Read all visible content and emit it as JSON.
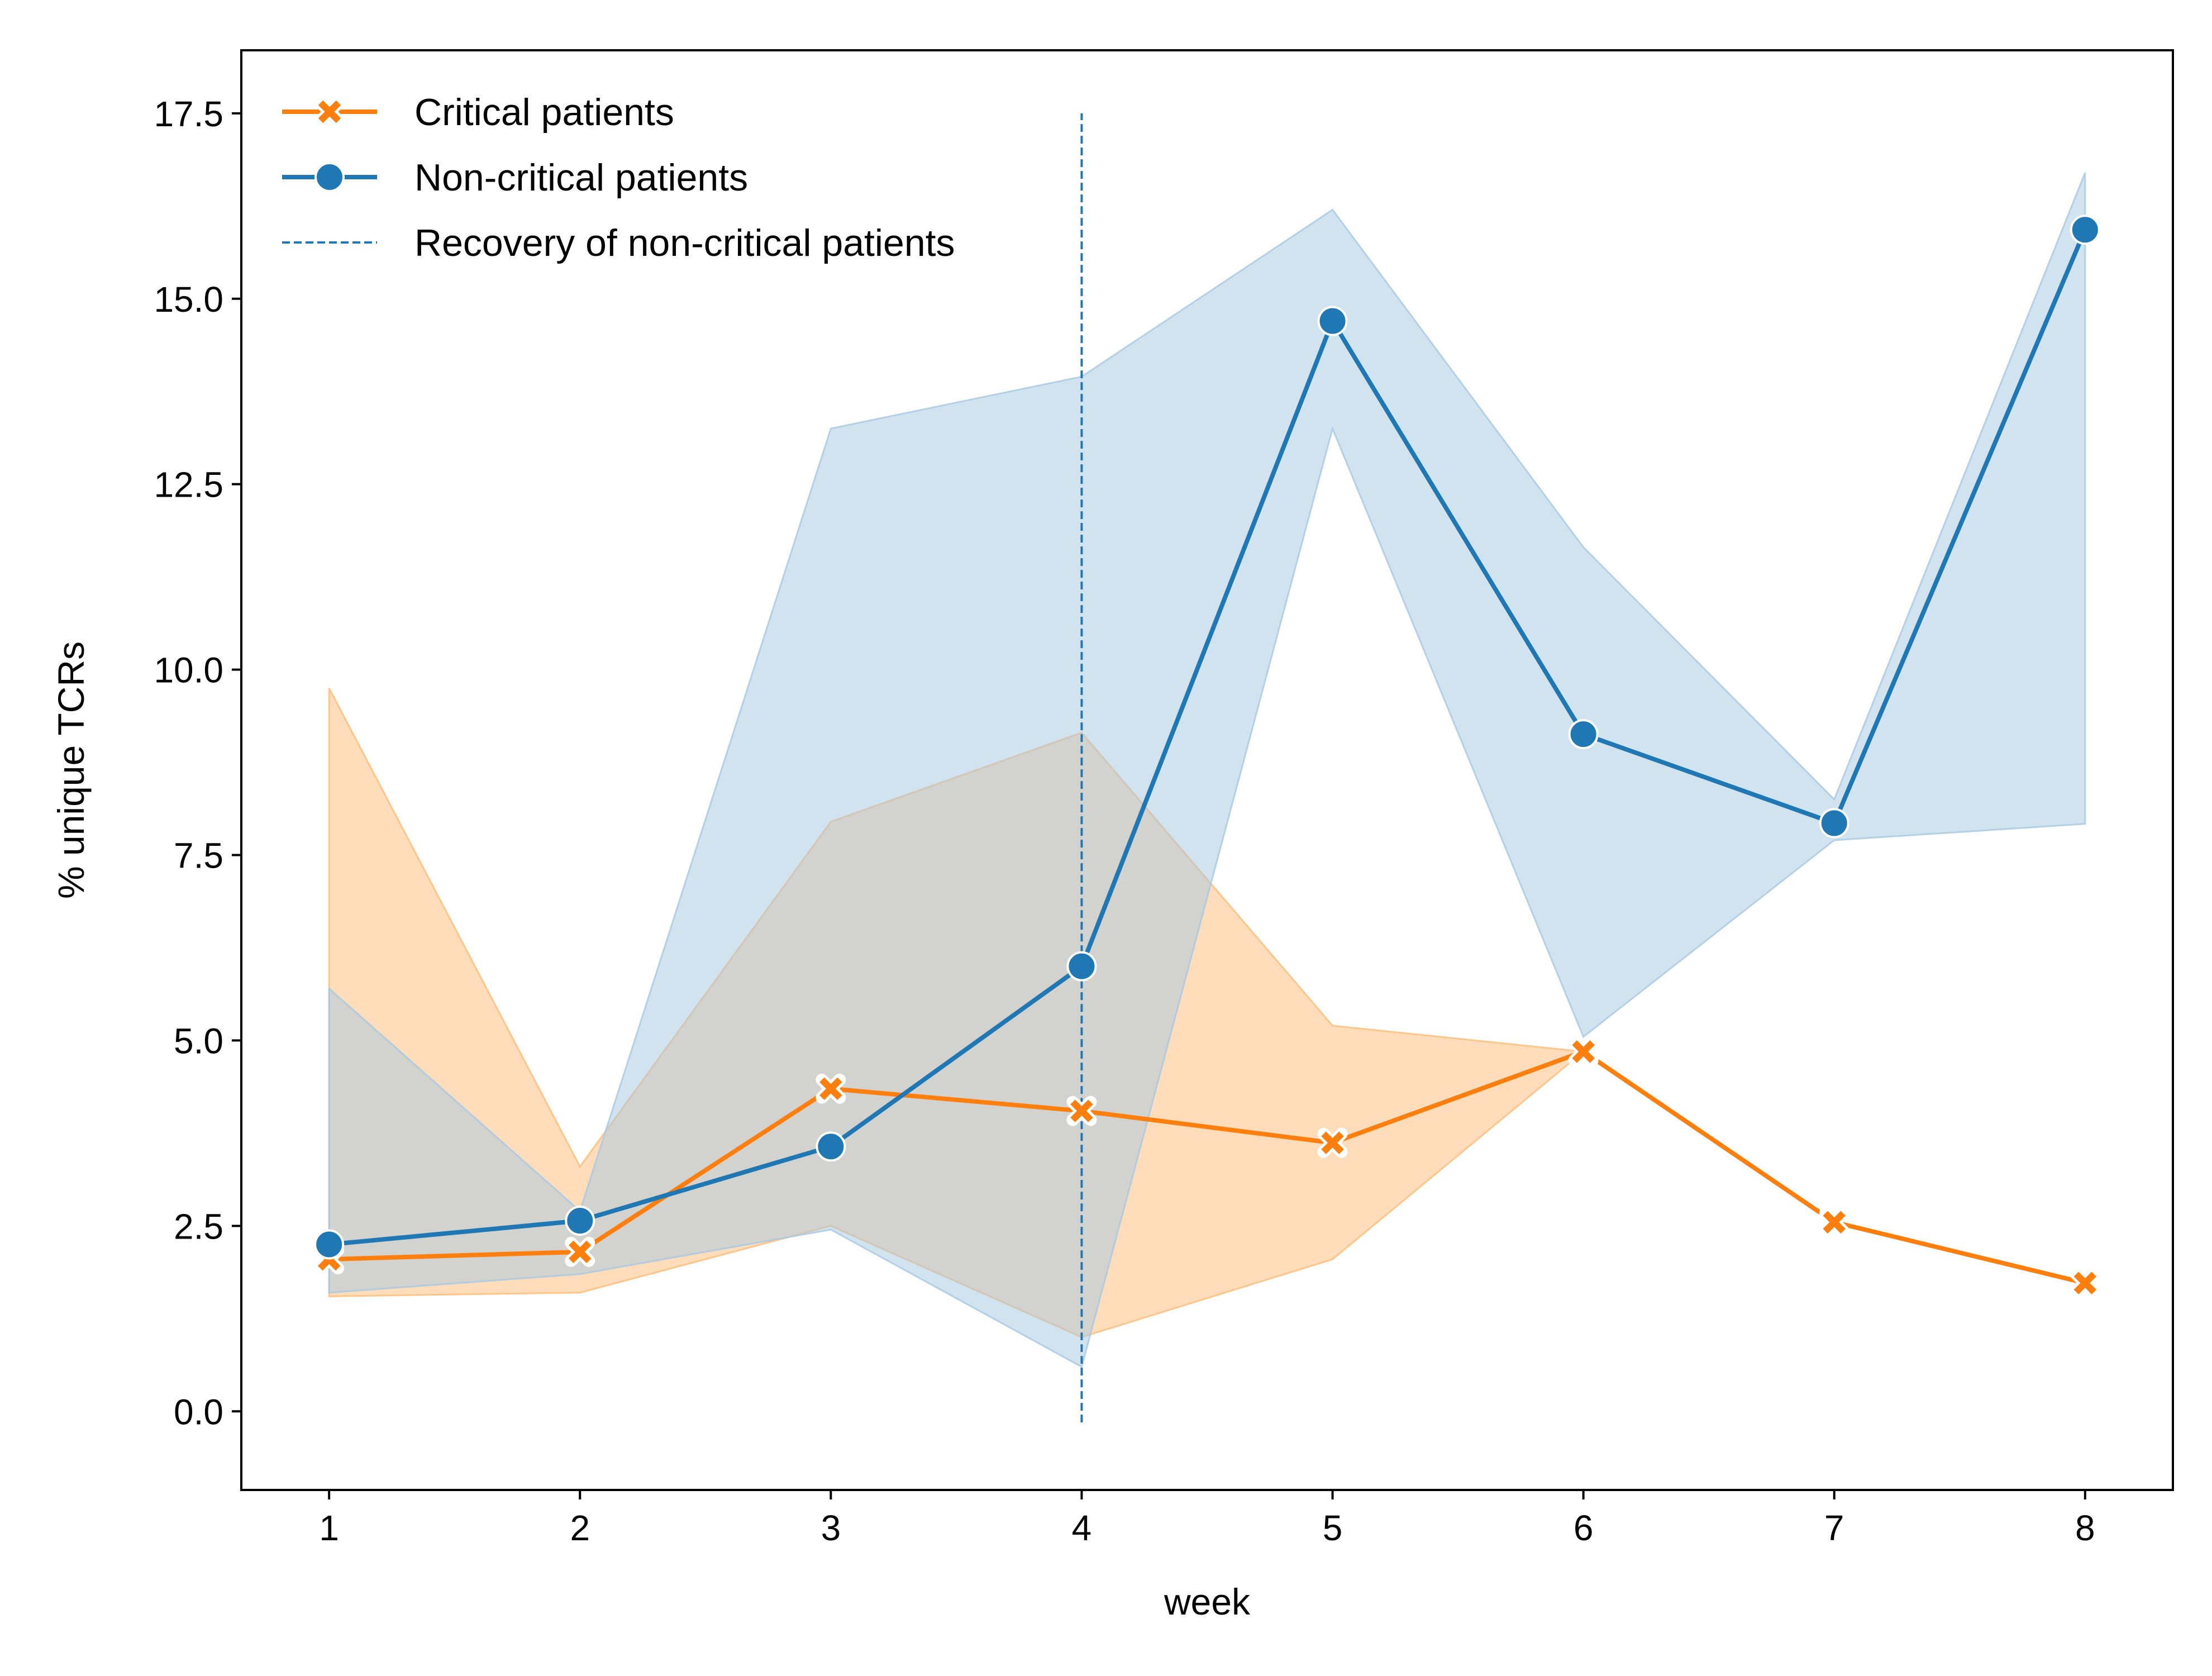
{
  "chart_data": {
    "type": "line",
    "title": "",
    "xlabel": "week",
    "ylabel": "% unique TCRs",
    "x": [
      1,
      2,
      3,
      4,
      5,
      6,
      7,
      8
    ],
    "xlim": [
      0.65,
      8.35
    ],
    "ylim": [
      -1.06,
      18.35
    ],
    "xticks": [
      "1",
      "2",
      "3",
      "4",
      "5",
      "6",
      "7",
      "8"
    ],
    "yticks": [
      "0.0",
      "2.5",
      "5.0",
      "7.5",
      "10.0",
      "12.5",
      "15.0",
      "17.5"
    ],
    "grid": false,
    "legend_position": "top-left",
    "series": [
      {
        "name": "Critical patients",
        "color": "#ff7f0e",
        "band_color": "#ffbb78",
        "marker": "x",
        "x": [
          1,
          2,
          3,
          4,
          5,
          6,
          7,
          8
        ],
        "values": [
          2.05,
          2.15,
          4.35,
          4.05,
          3.62,
          4.85,
          2.55,
          1.73
        ],
        "ci_lower": [
          1.55,
          1.6,
          2.5,
          1.0,
          2.05,
          4.85,
          2.55,
          1.73
        ],
        "ci_upper": [
          9.75,
          3.3,
          7.95,
          9.15,
          5.2,
          4.85,
          2.55,
          1.73
        ]
      },
      {
        "name": "Non-critical patients",
        "color": "#1f77b4",
        "band_color": "#a6c8e2",
        "marker": "o",
        "x": [
          1,
          2,
          3,
          4,
          5,
          6,
          7,
          8
        ],
        "values": [
          2.25,
          2.57,
          3.57,
          6.0,
          14.7,
          9.13,
          7.93,
          15.93
        ],
        "ci_lower": [
          1.6,
          1.85,
          2.45,
          0.6,
          13.25,
          5.05,
          7.7,
          7.92
        ],
        "ci_upper": [
          5.7,
          2.7,
          13.25,
          13.95,
          16.2,
          11.65,
          8.25,
          16.7
        ]
      }
    ],
    "reference_line": {
      "name": "Recovery of non-critical patients",
      "orientation": "vertical",
      "x": 4,
      "y_range": [
        -0.15,
        17.5
      ],
      "color": "#1f77b4",
      "style": "dashed"
    }
  }
}
